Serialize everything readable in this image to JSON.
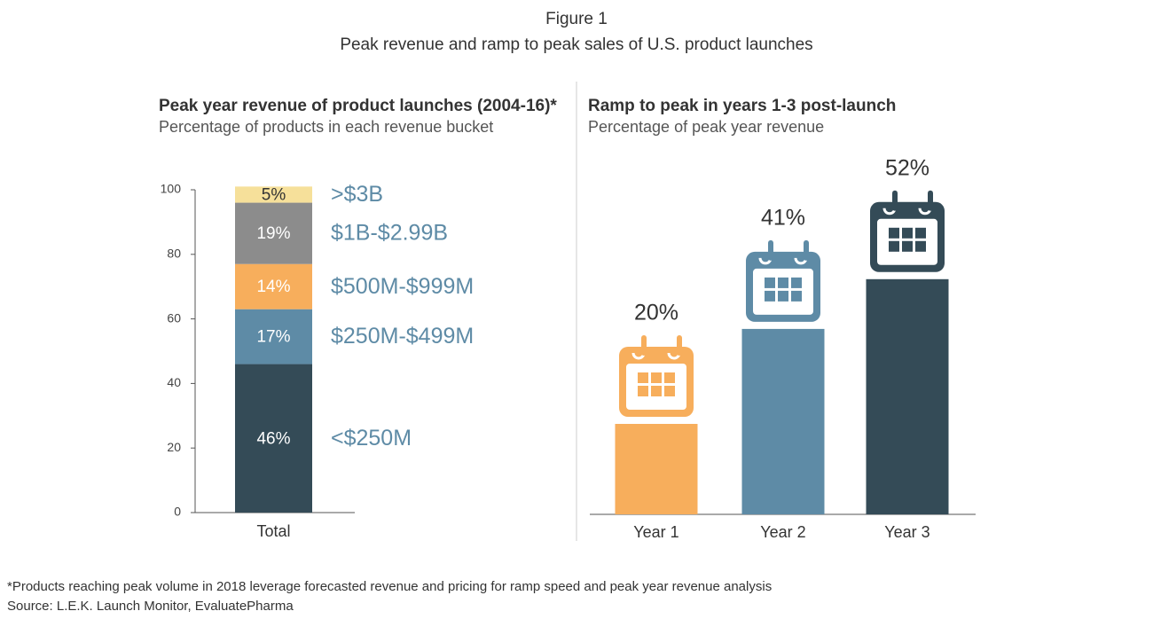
{
  "title": "Figure 1",
  "subtitle": "Peak revenue and ramp to peak sales of U.S. product launches",
  "chart_data": [
    {
      "type": "stacked_bar",
      "title": "Peak year revenue of product launches (2004-16)*",
      "subtitle": "Percentage of products in each revenue bucket",
      "categories": [
        "Total"
      ],
      "series": [
        {
          "name": "<$250M",
          "color": "#344b57",
          "values": [
            46
          ],
          "value_labels": [
            "46%"
          ]
        },
        {
          "name": "$250M-$499M",
          "color": "#5e8ba6",
          "values": [
            17
          ],
          "value_labels": [
            "17%"
          ]
        },
        {
          "name": "$500M-$999M",
          "color": "#f7ae5c",
          "values": [
            14
          ],
          "value_labels": [
            "14%"
          ]
        },
        {
          "name": "$1B-$2.99B",
          "color": "#8c8c8c",
          "values": [
            19
          ],
          "value_labels": [
            "19%"
          ]
        },
        {
          "name": ">$3B",
          "color": "#f6e09a",
          "values": [
            5
          ],
          "value_labels": [
            "5%"
          ]
        }
      ],
      "legend_color": "#5e8ba6",
      "ylim": [
        0,
        100
      ],
      "yticks": [
        0,
        20,
        40,
        60,
        80,
        100
      ]
    },
    {
      "type": "bar",
      "title": "Ramp to peak in years 1-3 post-launch",
      "subtitle": "Percentage of peak year revenue",
      "categories": [
        "Year 1",
        "Year 2",
        "Year 3"
      ],
      "values": [
        20,
        41,
        52
      ],
      "value_labels": [
        "20%",
        "41%",
        "52%"
      ],
      "colors": [
        "#f7ae5c",
        "#5e8ba6",
        "#344b57"
      ]
    }
  ],
  "footnote": "*Products reaching peak volume in 2018 leverage forecasted revenue and pricing for ramp speed and peak year revenue analysis",
  "source": "Source: L.E.K. Launch Monitor, EvaluatePharma"
}
